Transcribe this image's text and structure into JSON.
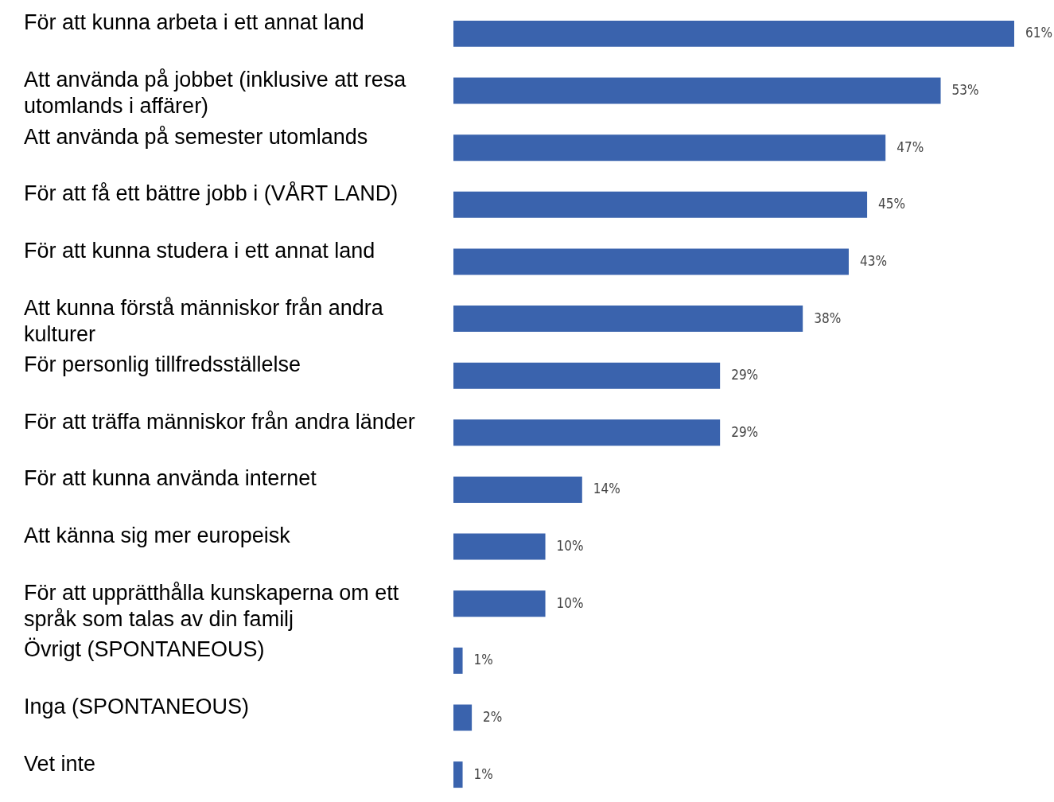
{
  "chart_data": {
    "type": "bar",
    "orientation": "horizontal",
    "color": "#3a63ad",
    "categories": [
      "För att kunna arbeta i ett annat land",
      "Att använda på jobbet (inklusive att resa utomlands i affärer)",
      "Att använda på semester utomlands",
      "För att få ett bättre jobb i (VÅRT LAND)",
      "För att kunna studera i ett annat land",
      "Att kunna förstå människor från andra kulturer",
      "För personlig tillfredsställelse",
      "För att träffa människor från andra länder",
      "För att kunna använda internet",
      "Att känna sig mer europeisk",
      "För att upprätthålla kunskaperna om ett språk som talas av din familj",
      "Övrigt (SPONTANEOUS)",
      "Inga (SPONTANEOUS)",
      "Vet inte"
    ],
    "values": [
      61,
      53,
      47,
      45,
      43,
      38,
      29,
      29,
      14,
      10,
      10,
      1,
      2,
      1
    ],
    "value_labels": [
      "61%",
      "53%",
      "47%",
      "45%",
      "43%",
      "38%",
      "29%",
      "29%",
      "14%",
      "10%",
      "10%",
      "1%",
      "2%",
      "1%"
    ]
  }
}
